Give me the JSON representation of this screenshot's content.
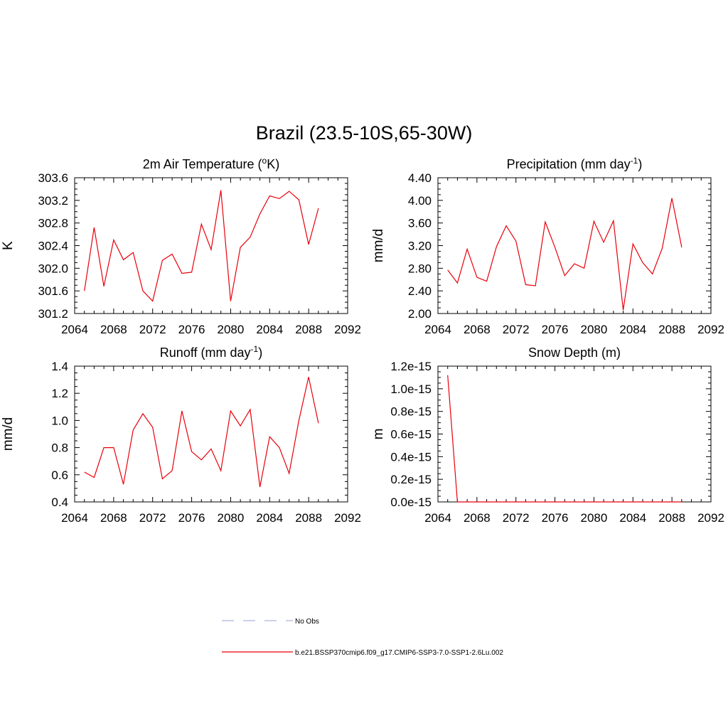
{
  "title": "Brazil (23.5-10S,65-30W)",
  "line_color": "#e8000b",
  "chart_data": [
    {
      "type": "line",
      "title": "2m Air Temperature (°K)",
      "title_parts": [
        "2m Air Temperature (",
        "o",
        "K)"
      ],
      "ylabel": "K",
      "xlim": [
        2064,
        2092
      ],
      "ylim": [
        301.2,
        303.6
      ],
      "x_ticks": [
        "2064",
        "2068",
        "2072",
        "2076",
        "2080",
        "2084",
        "2088",
        "2092"
      ],
      "y_ticks": [
        "301.2",
        "301.6",
        "302.0",
        "302.4",
        "302.8",
        "303.2",
        "303.6"
      ],
      "x": [
        2065,
        2066,
        2067,
        2068,
        2069,
        2070,
        2071,
        2072,
        2073,
        2074,
        2075,
        2076,
        2077,
        2078,
        2079,
        2080,
        2081,
        2082,
        2083,
        2084,
        2085,
        2086,
        2087,
        2088,
        2089
      ],
      "series": [
        {
          "values": [
            301.6,
            302.72,
            301.68,
            302.5,
            302.15,
            302.28,
            301.6,
            301.42,
            302.14,
            302.25,
            301.91,
            301.93,
            302.78,
            302.33,
            303.38,
            301.42,
            302.37,
            302.55,
            302.96,
            303.28,
            303.23,
            303.36,
            303.21,
            302.42,
            303.06
          ]
        }
      ]
    },
    {
      "type": "line",
      "title": "Precipitation (mm day-1)",
      "title_parts": [
        "Precipitation (mm day",
        "-1",
        ")"
      ],
      "ylabel": "mm/d",
      "xlim": [
        2064,
        2092
      ],
      "ylim": [
        2.0,
        4.4
      ],
      "x_ticks": [
        "2064",
        "2068",
        "2072",
        "2076",
        "2080",
        "2084",
        "2088",
        "2092"
      ],
      "y_ticks": [
        "2.00",
        "2.40",
        "2.80",
        "3.20",
        "3.60",
        "4.00",
        "4.40"
      ],
      "x": [
        2065,
        2066,
        2067,
        2068,
        2069,
        2070,
        2071,
        2072,
        2073,
        2074,
        2075,
        2076,
        2077,
        2078,
        2079,
        2080,
        2081,
        2082,
        2083,
        2084,
        2085,
        2086,
        2087,
        2088,
        2089
      ],
      "series": [
        {
          "values": [
            2.77,
            2.54,
            3.14,
            2.64,
            2.57,
            3.18,
            3.55,
            3.28,
            2.51,
            2.49,
            3.62,
            3.17,
            2.67,
            2.88,
            2.8,
            3.63,
            3.26,
            3.64,
            2.06,
            3.23,
            2.9,
            2.7,
            3.15,
            4.04,
            3.17
          ]
        }
      ]
    },
    {
      "type": "line",
      "title": "Runoff (mm day-1)",
      "title_parts": [
        "Runoff (mm day",
        "-1",
        ")"
      ],
      "ylabel": "mm/d",
      "xlim": [
        2064,
        2092
      ],
      "ylim": [
        0.4,
        1.4
      ],
      "x_ticks": [
        "2064",
        "2068",
        "2072",
        "2076",
        "2080",
        "2084",
        "2088",
        "2092"
      ],
      "y_ticks": [
        "0.4",
        "0.6",
        "0.8",
        "1.0",
        "1.2",
        "1.4"
      ],
      "x": [
        2065,
        2066,
        2067,
        2068,
        2069,
        2070,
        2071,
        2072,
        2073,
        2074,
        2075,
        2076,
        2077,
        2078,
        2079,
        2080,
        2081,
        2082,
        2083,
        2084,
        2085,
        2086,
        2087,
        2088,
        2089
      ],
      "series": [
        {
          "values": [
            0.62,
            0.58,
            0.8,
            0.8,
            0.53,
            0.93,
            1.05,
            0.95,
            0.57,
            0.63,
            1.07,
            0.77,
            0.71,
            0.79,
            0.63,
            1.07,
            0.96,
            1.08,
            0.51,
            0.88,
            0.8,
            0.61,
            1.0,
            1.32,
            0.98
          ]
        }
      ]
    },
    {
      "type": "line",
      "title": "Snow Depth (m)",
      "title_parts": [
        "Snow Depth (m)",
        "",
        ""
      ],
      "ylabel": "m",
      "xlim": [
        2064,
        2092
      ],
      "ylim": [
        0,
        1.2e-15
      ],
      "x_ticks": [
        "2064",
        "2068",
        "2072",
        "2076",
        "2080",
        "2084",
        "2088",
        "2092"
      ],
      "y_ticks": [
        "0.0e-15",
        "0.2e-15",
        "0.4e-15",
        "0.6e-15",
        "0.8e-15",
        "1.0e-15",
        "1.2e-15"
      ],
      "x": [
        2065,
        2066,
        2067,
        2068,
        2069,
        2070,
        2071,
        2072,
        2073,
        2074,
        2075,
        2076,
        2077,
        2078,
        2079,
        2080,
        2081,
        2082,
        2083,
        2084,
        2085,
        2086,
        2087,
        2088,
        2089
      ],
      "series": [
        {
          "values": [
            1.12e-15,
            0,
            0,
            0,
            0,
            0,
            0,
            0,
            0,
            0,
            0,
            0,
            0,
            0,
            0,
            0,
            0,
            0,
            0,
            0,
            0,
            0,
            0,
            0,
            0
          ]
        }
      ]
    }
  ],
  "legend": [
    {
      "label": "No Obs",
      "color": "#aab4e0",
      "style": "dashed"
    },
    {
      "label": "b.e21.BSSP370cmip6.f09_g17.CMIP6-SSP3-7.0-SSP1-2.6Lu.002",
      "color": "#e8000b",
      "style": "solid"
    }
  ]
}
